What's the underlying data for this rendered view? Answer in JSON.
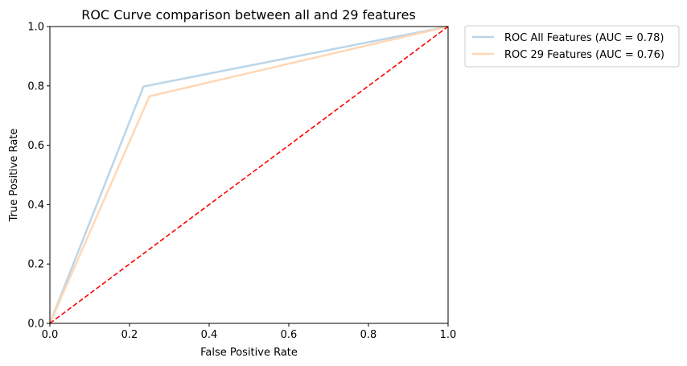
{
  "chart_data": {
    "type": "line",
    "title": "ROC Curve comparison between all and 29 features",
    "xlabel": "False Positive Rate",
    "ylabel": "True Positive Rate",
    "xlim": [
      0.0,
      1.0
    ],
    "ylim": [
      0.0,
      1.0
    ],
    "xticks": [
      "0.0",
      "0.2",
      "0.4",
      "0.6",
      "0.8",
      "1.0"
    ],
    "yticks": [
      "0.0",
      "0.2",
      "0.4",
      "0.6",
      "0.8",
      "1.0"
    ],
    "grid": false,
    "legend_position": "outside-top-right",
    "series": [
      {
        "name": "ROC All Features (AUC = 0.78)",
        "color": "#bad6ea",
        "style": "solid",
        "x": [
          0.0,
          0.235,
          1.0
        ],
        "y": [
          0.0,
          0.798,
          1.0
        ]
      },
      {
        "name": "ROC 29 Features (AUC = 0.76)",
        "color": "#ffd7b4",
        "style": "solid",
        "x": [
          0.0,
          0.25,
          1.0
        ],
        "y": [
          0.0,
          0.765,
          1.0
        ]
      }
    ],
    "reference_line": {
      "color": "#ff0000",
      "style": "dashed",
      "x": [
        0.0,
        1.0
      ],
      "y": [
        0.0,
        1.0
      ]
    }
  }
}
